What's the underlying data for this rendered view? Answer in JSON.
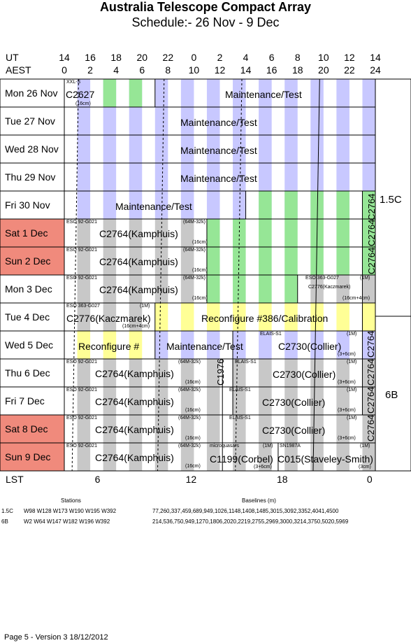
{
  "title": "Australia Telescope Compact Array",
  "subtitle": "Schedule:- 26 Nov - 9  Dec",
  "axis": {
    "ut_label": "UT",
    "aest_label": "AEST",
    "lst_label": "LST",
    "ut_ticks": [
      "14",
      "16",
      "18",
      "20",
      "22",
      "0",
      "2",
      "4",
      "6",
      "8",
      "10",
      "12",
      "14"
    ],
    "aest_ticks": [
      "0",
      "2",
      "4",
      "6",
      "8",
      "10",
      "12",
      "14",
      "16",
      "18",
      "20",
      "22",
      "24"
    ],
    "lst_ticks": [
      "6",
      "12",
      "18",
      "0"
    ]
  },
  "colors": {
    "weekend": "#f08a7c",
    "night_blue": "#c8c8ff",
    "night_green": "#96e696",
    "night_grey": "#c8c8c8",
    "reconfig_yellow": "#ffff96"
  },
  "days": [
    {
      "label": "Mon  26 Nov"
    },
    {
      "label": "Tue   27 Nov"
    },
    {
      "label": "Wed  28 Nov"
    },
    {
      "label": "Thu   29 Nov"
    },
    {
      "label": "Fri    30 Nov"
    },
    {
      "label": "Sat    1  Dec"
    },
    {
      "label": "Sun   2  Dec"
    },
    {
      "label": "Mon   3  Dec"
    },
    {
      "label": "Tue   4  Dec"
    },
    {
      "label": "Wed   5  Dec"
    },
    {
      "label": "Thu   6  Dec"
    },
    {
      "label": "Fri    7  Dec"
    },
    {
      "label": "Sat   8  Dec"
    },
    {
      "label": "Sun   9  Dec"
    }
  ],
  "blocks": {
    "mon26_small": "XXL-S",
    "mon26_code": "C2627",
    "mon26_band": "(16cm)",
    "maint": "Maintenance/Test",
    "kamphuis": "C2764(Kamphuis)",
    "eso1": "ESO 92-G021",
    "band64": "(64M-32k)",
    "band16": "(16cm)",
    "kacz": "C2776(Kaczmarek)",
    "eso2": "ESO 363-G027",
    "band1m": "(1M)",
    "band16_4": "(16cm+4cm)",
    "reconfig386": "Reconfigure #386/Calibration",
    "reconfig_short": "Reconfigure #",
    "collier": "C2730(Collier)",
    "elais": "ELAIS-S1",
    "band3_6": "(3+6cm)",
    "c1976": "C1976",
    "c2764_vert": "C2764",
    "microquasars": "microquasars",
    "corbel": "C1199(Corbel)",
    "sn": "SN1987A",
    "staveley": "C015(Staveley-Smith)",
    "band3cm": "(3cm)"
  },
  "configs": {
    "top": "1.5C",
    "bottom": "6B"
  },
  "legend": {
    "stations_header": "Stations",
    "baselines_header": "Baselines (m)",
    "rows": [
      {
        "cfg": "1.5C",
        "stations": "W98 W128 W173 W190 W195 W392",
        "baselines": "77,260,337,459,689,949,1026,1148,1408,1485,3015,3092,3352,4041,4500"
      },
      {
        "cfg": "6B",
        "stations": "W2 W64 W147 W182 W196 W392",
        "baselines": "214,536,750,949,1270,1806,2020,2219,2755,2969,3000,3214,3750,5020,5969"
      }
    ]
  },
  "footer": "Page 5 - Version 3  18/12/2012"
}
